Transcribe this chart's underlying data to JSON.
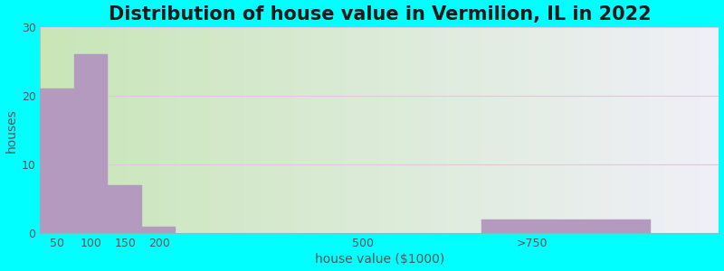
{
  "title": "Distribution of house value in Vermilion, IL in 2022",
  "xlabel": "house value ($1000)",
  "ylabel": "houses",
  "bar_labels": [
    "50",
    "100",
    "150",
    "200",
    "500",
    ">750"
  ],
  "bar_values": [
    21,
    26,
    7,
    1,
    0,
    2
  ],
  "bar_color": "#b49abe",
  "bar_edgecolor": "#b49abe",
  "ylim": [
    0,
    30
  ],
  "yticks": [
    0,
    10,
    20,
    30
  ],
  "background_color": "#00ffff",
  "grad_color_left": "#c8e6b8",
  "grad_color_right": "#f0f0f8",
  "title_fontsize": 15,
  "axis_label_fontsize": 10,
  "tick_fontsize": 9,
  "x_positions": [
    50,
    100,
    150,
    200,
    500,
    800
  ],
  "bar_widths": [
    50,
    50,
    50,
    50,
    50,
    250
  ],
  "x_tick_positions": [
    50,
    100,
    150,
    200,
    500,
    750
  ],
  "xlim": [
    25,
    1025
  ]
}
